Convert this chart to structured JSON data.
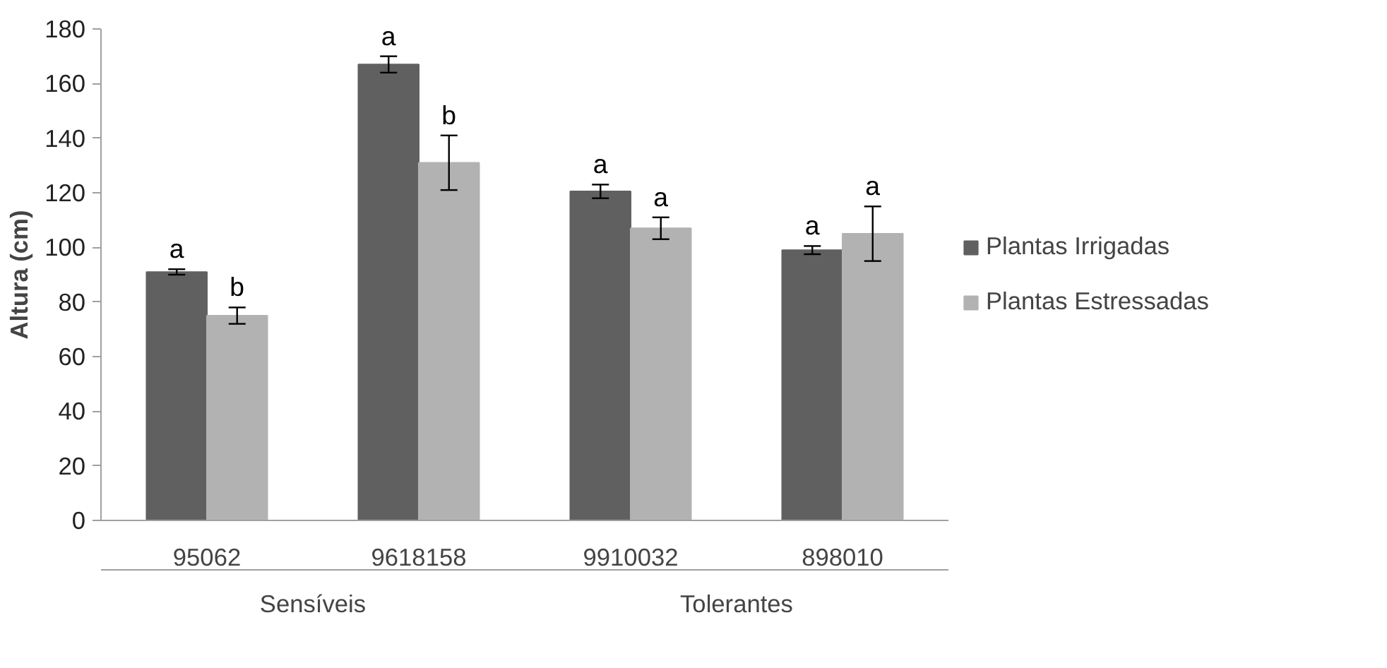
{
  "chart_data": {
    "type": "bar",
    "ylabel": "Altura (cm)",
    "categories": [
      "95062",
      "9618158",
      "9910032",
      "898010"
    ],
    "series": [
      {
        "name": "Plantas Irrigadas",
        "color": "#606060",
        "values": [
          91,
          167,
          120.5,
          99
        ],
        "errors": [
          1,
          3,
          2.5,
          1.5
        ],
        "value_labels": [
          "a",
          "a",
          "a",
          "a"
        ]
      },
      {
        "name": "Plantas Estressadas",
        "color": "#b2b2b2",
        "values": [
          75,
          131,
          107,
          105
        ],
        "errors": [
          3,
          10,
          4,
          10
        ],
        "value_labels": [
          "b",
          "b",
          "a",
          "a"
        ]
      }
    ],
    "annotations": [
      "Sensíveis",
      "Tolerantes"
    ],
    "ylim": [
      0,
      180
    ],
    "yticks": [
      0,
      20,
      40,
      60,
      80,
      100,
      120,
      140,
      160,
      180
    ],
    "grid": false,
    "legend": "right"
  }
}
